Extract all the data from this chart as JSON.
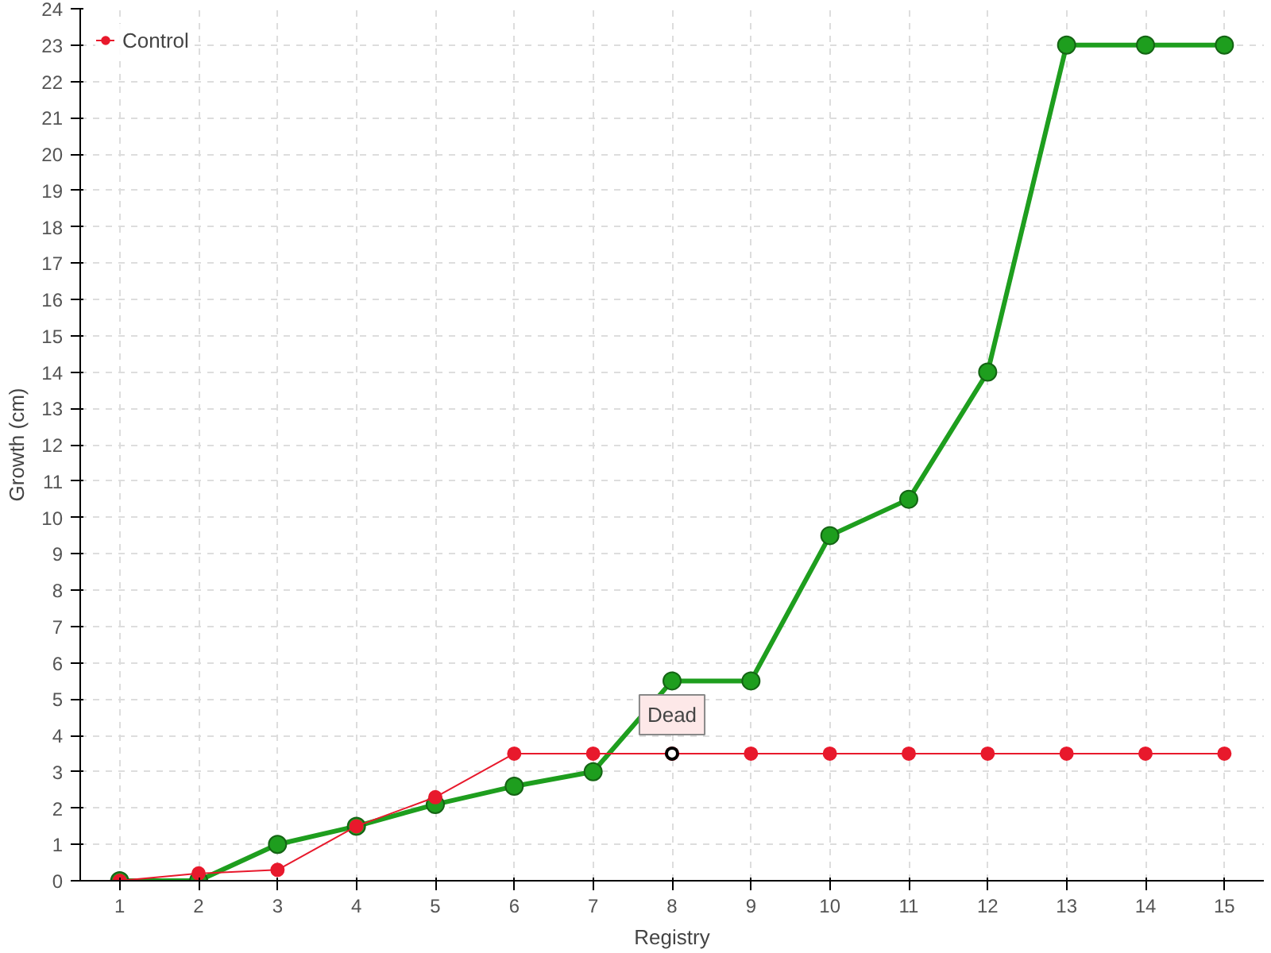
{
  "chart_data": {
    "type": "line",
    "xlabel": "Registry",
    "ylabel": "Growth (cm)",
    "x": [
      1,
      2,
      3,
      4,
      5,
      6,
      7,
      8,
      9,
      10,
      11,
      12,
      13,
      14,
      15
    ],
    "xlim": [
      0.5,
      15.5
    ],
    "xticks": [
      1,
      2,
      3,
      4,
      5,
      6,
      7,
      8,
      9,
      10,
      11,
      12,
      13,
      14,
      15
    ],
    "ylim": [
      0,
      24
    ],
    "yticks": [
      0,
      1,
      2,
      3,
      4,
      5,
      6,
      7,
      8,
      9,
      10,
      11,
      12,
      13,
      14,
      15,
      16,
      17,
      18,
      19,
      20,
      21,
      22,
      23,
      24
    ],
    "series": [
      {
        "color": "#1e9e1e",
        "values": [
          0,
          0,
          1,
          1.5,
          2.1,
          2.6,
          3,
          5.5,
          5.5,
          9.5,
          10.5,
          14,
          23,
          23,
          23
        ]
      },
      {
        "name": "Control",
        "color": "#e8192c",
        "values": [
          0,
          0.2,
          0.3,
          1.5,
          2.3,
          3.5,
          3.5,
          3.5,
          3.5,
          3.5,
          3.5,
          3.5,
          3.5,
          3.5,
          3.5
        ]
      }
    ],
    "annotations": [
      {
        "text": "Dead",
        "x": 8,
        "y": 3.5
      }
    ],
    "grid": true,
    "legend": "top left",
    "marker": "circle",
    "line_style": "solid"
  }
}
